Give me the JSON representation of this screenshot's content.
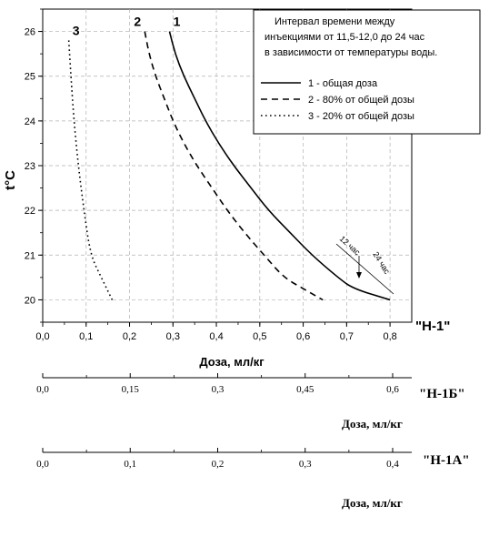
{
  "chart_data": {
    "type": "line",
    "xlabel": "Доза, мл/кг",
    "ylabel": "t°C",
    "xlim": [
      0,
      0.85
    ],
    "ylim": [
      19.5,
      26.5
    ],
    "x_ticks": [
      "0,0",
      "0,1",
      "0,2",
      "0,3",
      "0,4",
      "0,5",
      "0,6",
      "0,7",
      "0,8"
    ],
    "y_ticks": [
      "20",
      "21",
      "22",
      "23",
      "24",
      "25",
      "26"
    ],
    "grid": true,
    "axis_tag": "\"H-1\"",
    "series": [
      {
        "name": "1 - общая доза",
        "label": "1",
        "style": "solid",
        "points": [
          [
            0.292,
            26.0
          ],
          [
            0.305,
            25.5
          ],
          [
            0.325,
            25.0
          ],
          [
            0.35,
            24.5
          ],
          [
            0.375,
            24.0
          ],
          [
            0.405,
            23.5
          ],
          [
            0.44,
            23.0
          ],
          [
            0.48,
            22.5
          ],
          [
            0.52,
            22.0
          ],
          [
            0.57,
            21.5
          ],
          [
            0.62,
            21.0
          ],
          [
            0.68,
            20.5
          ],
          [
            0.715,
            20.25
          ],
          [
            0.8,
            20.0
          ]
        ]
      },
      {
        "name": "2 - 80% от общей дозы",
        "label": "2",
        "style": "dashed",
        "points": [
          [
            0.235,
            26.0
          ],
          [
            0.245,
            25.5
          ],
          [
            0.26,
            25.0
          ],
          [
            0.28,
            24.5
          ],
          [
            0.3,
            24.0
          ],
          [
            0.325,
            23.5
          ],
          [
            0.355,
            23.0
          ],
          [
            0.39,
            22.5
          ],
          [
            0.425,
            22.0
          ],
          [
            0.465,
            21.5
          ],
          [
            0.51,
            21.0
          ],
          [
            0.555,
            20.5
          ],
          [
            0.6,
            20.25
          ],
          [
            0.645,
            20.0
          ]
        ]
      },
      {
        "name": "3 - 20% от общей дозы",
        "label": "3",
        "style": "dotted",
        "points": [
          [
            0.06,
            25.8
          ],
          [
            0.065,
            25.0
          ],
          [
            0.072,
            24.0
          ],
          [
            0.082,
            23.0
          ],
          [
            0.095,
            22.0
          ],
          [
            0.11,
            21.0
          ],
          [
            0.135,
            20.5
          ],
          [
            0.16,
            20.0
          ]
        ]
      }
    ],
    "legend_title": "Интервал времени между инъекциями от 11,5-12,0 до 24 час в зависимости от температуры воды.",
    "legend_title_lines": [
      "Интервал времени между",
      "инъекциями от 11,5-12,0 до 24 час",
      "в зависимости от температуры воды."
    ],
    "legend_position": "top-right",
    "annotations": [
      {
        "text": "12 час",
        "at": [
          0.72,
          20.8
        ]
      },
      {
        "text": "24 час",
        "at": [
          0.78,
          20.6
        ]
      }
    ],
    "secondary_axes": [
      {
        "tag": "\"H-1Б\"",
        "label": "Доза, мл/кг",
        "ticks": [
          "0,0",
          "0,15",
          "0,3",
          "0,45",
          "0,6"
        ],
        "range": [
          0,
          0.6
        ]
      },
      {
        "tag": "\"H-1A\"",
        "label": "Доза, мл/кг",
        "ticks": [
          "0,0",
          "0,1",
          "0,2",
          "0,3",
          "0,4"
        ],
        "range": [
          0,
          0.4
        ]
      }
    ]
  }
}
